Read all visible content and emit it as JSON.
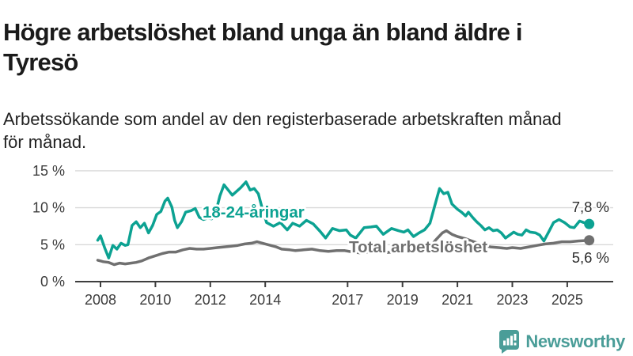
{
  "header": {
    "title": "Högre arbetslöshet bland unga än bland äldre i\nTyresö",
    "subtitle": "Arbetssökande som andel av den registerbaserade arbetskraften månad\nför månad."
  },
  "branding": {
    "logo_text": "Newsworthy",
    "logo_color": "#4a9d98",
    "logo_icon": "newsworthy-speech-bubble-barchart-icon"
  },
  "colors": {
    "young_series": "#0ca292",
    "total_series": "#707070",
    "axis_text": "#3c3c3c",
    "axis_line": "#3e3e3e",
    "gridline": "#d9d9d9",
    "annotation_text": "#2d2d2d",
    "title_text": "#1b1b1b"
  },
  "chart_data": {
    "type": "line",
    "title": "Högre arbetslöshet bland unga än bland äldre i Tyresö",
    "subtitle": "Arbetssökande som andel av den registerbaserade arbetskraften månad för månad.",
    "unit": "%",
    "grid": "horizontal",
    "legend": "inline-labels",
    "xlim": [
      2007.8,
      2026.3
    ],
    "ylim": [
      0,
      15.5
    ],
    "x_axis": {
      "ticks": [
        2008,
        2010,
        2012,
        2014,
        2017,
        2019,
        2021,
        2023,
        2025
      ],
      "tick_labels": [
        "2008",
        "2010",
        "2012",
        "2014",
        "2017",
        "2019",
        "2021",
        "2023",
        "2025"
      ]
    },
    "y_axis": {
      "ticks": [
        0,
        5,
        10,
        15
      ],
      "tick_labels": [
        "0 %",
        "5 %",
        "10 %",
        "15 %"
      ]
    },
    "series": [
      {
        "name": "18-24-åringar",
        "color": "#0ca292",
        "end_label": "7,8 %",
        "end_value": 7.8,
        "points": [
          [
            2007.9,
            5.6
          ],
          [
            2008.0,
            6.2
          ],
          [
            2008.15,
            4.6
          ],
          [
            2008.3,
            3.2
          ],
          [
            2008.45,
            4.9
          ],
          [
            2008.6,
            4.4
          ],
          [
            2008.75,
            5.2
          ],
          [
            2008.9,
            4.9
          ],
          [
            2009.0,
            5.0
          ],
          [
            2009.15,
            7.6
          ],
          [
            2009.3,
            8.1
          ],
          [
            2009.45,
            7.3
          ],
          [
            2009.6,
            7.9
          ],
          [
            2009.75,
            6.6
          ],
          [
            2009.9,
            7.6
          ],
          [
            2010.05,
            9.1
          ],
          [
            2010.2,
            9.5
          ],
          [
            2010.35,
            10.9
          ],
          [
            2010.45,
            11.3
          ],
          [
            2010.6,
            10.1
          ],
          [
            2010.7,
            8.3
          ],
          [
            2010.8,
            7.3
          ],
          [
            2010.95,
            8.1
          ],
          [
            2011.1,
            9.4
          ],
          [
            2011.3,
            9.6
          ],
          [
            2011.45,
            9.9
          ],
          [
            2011.6,
            8.7
          ],
          [
            2011.75,
            8.4
          ],
          [
            2011.9,
            8.6
          ],
          [
            2012.05,
            8.5
          ],
          [
            2012.2,
            9.4
          ],
          [
            2012.35,
            11.6
          ],
          [
            2012.5,
            13.1
          ],
          [
            2012.65,
            12.4
          ],
          [
            2012.8,
            11.7
          ],
          [
            2012.95,
            12.2
          ],
          [
            2013.1,
            12.7
          ],
          [
            2013.3,
            13.5
          ],
          [
            2013.45,
            12.4
          ],
          [
            2013.6,
            12.6
          ],
          [
            2013.75,
            11.9
          ],
          [
            2013.9,
            9.8
          ],
          [
            2014.05,
            8.0
          ],
          [
            2014.3,
            7.5
          ],
          [
            2014.55,
            8.0
          ],
          [
            2014.8,
            7.0
          ],
          [
            2015.0,
            7.9
          ],
          [
            2015.25,
            7.5
          ],
          [
            2015.5,
            8.3
          ],
          [
            2015.75,
            7.8
          ],
          [
            2016.0,
            6.8
          ],
          [
            2016.2,
            5.9
          ],
          [
            2016.45,
            7.2
          ],
          [
            2016.7,
            6.9
          ],
          [
            2016.95,
            7.0
          ],
          [
            2017.1,
            6.3
          ],
          [
            2017.3,
            5.9
          ],
          [
            2017.6,
            7.3
          ],
          [
            2017.85,
            7.4
          ],
          [
            2018.05,
            7.5
          ],
          [
            2018.3,
            6.4
          ],
          [
            2018.6,
            7.2
          ],
          [
            2018.85,
            6.9
          ],
          [
            2019.05,
            6.7
          ],
          [
            2019.2,
            7.0
          ],
          [
            2019.4,
            6.1
          ],
          [
            2019.6,
            6.6
          ],
          [
            2019.8,
            7.0
          ],
          [
            2020.0,
            7.9
          ],
          [
            2020.2,
            10.6
          ],
          [
            2020.35,
            12.6
          ],
          [
            2020.5,
            11.9
          ],
          [
            2020.65,
            12.1
          ],
          [
            2020.8,
            10.5
          ],
          [
            2021.0,
            9.8
          ],
          [
            2021.15,
            9.4
          ],
          [
            2021.3,
            8.9
          ],
          [
            2021.4,
            9.4
          ],
          [
            2021.55,
            8.7
          ],
          [
            2021.7,
            8.1
          ],
          [
            2021.85,
            7.6
          ],
          [
            2022.0,
            7.0
          ],
          [
            2022.15,
            7.3
          ],
          [
            2022.3,
            6.9
          ],
          [
            2022.45,
            7.0
          ],
          [
            2022.6,
            6.6
          ],
          [
            2022.75,
            5.9
          ],
          [
            2022.9,
            6.3
          ],
          [
            2023.05,
            6.7
          ],
          [
            2023.2,
            6.4
          ],
          [
            2023.35,
            6.3
          ],
          [
            2023.5,
            7.0
          ],
          [
            2023.65,
            6.7
          ],
          [
            2023.85,
            6.6
          ],
          [
            2024.0,
            6.3
          ],
          [
            2024.15,
            5.5
          ],
          [
            2024.35,
            6.9
          ],
          [
            2024.5,
            8.0
          ],
          [
            2024.7,
            8.4
          ],
          [
            2024.9,
            8.0
          ],
          [
            2025.1,
            7.4
          ],
          [
            2025.25,
            7.3
          ],
          [
            2025.45,
            8.2
          ],
          [
            2025.6,
            8.0
          ],
          [
            2025.8,
            7.8
          ]
        ]
      },
      {
        "name": "Total arbetslöshet",
        "color": "#707070",
        "end_label": "5,6 %",
        "end_value": 5.6,
        "points": [
          [
            2007.9,
            2.9
          ],
          [
            2008.1,
            2.7
          ],
          [
            2008.3,
            2.6
          ],
          [
            2008.5,
            2.3
          ],
          [
            2008.7,
            2.5
          ],
          [
            2008.9,
            2.4
          ],
          [
            2009.1,
            2.5
          ],
          [
            2009.3,
            2.6
          ],
          [
            2009.5,
            2.8
          ],
          [
            2009.75,
            3.2
          ],
          [
            2010.0,
            3.5
          ],
          [
            2010.25,
            3.8
          ],
          [
            2010.5,
            4.0
          ],
          [
            2010.75,
            4.0
          ],
          [
            2011.0,
            4.3
          ],
          [
            2011.25,
            4.5
          ],
          [
            2011.5,
            4.4
          ],
          [
            2011.75,
            4.4
          ],
          [
            2012.0,
            4.5
          ],
          [
            2012.25,
            4.6
          ],
          [
            2012.5,
            4.7
          ],
          [
            2012.75,
            4.8
          ],
          [
            2013.0,
            4.9
          ],
          [
            2013.25,
            5.1
          ],
          [
            2013.5,
            5.2
          ],
          [
            2013.7,
            5.4
          ],
          [
            2013.9,
            5.2
          ],
          [
            2014.1,
            5.0
          ],
          [
            2014.4,
            4.7
          ],
          [
            2014.6,
            4.4
          ],
          [
            2014.9,
            4.3
          ],
          [
            2015.1,
            4.2
          ],
          [
            2015.4,
            4.3
          ],
          [
            2015.7,
            4.4
          ],
          [
            2016.0,
            4.2
          ],
          [
            2016.3,
            4.1
          ],
          [
            2016.6,
            4.2
          ],
          [
            2016.9,
            4.2
          ],
          [
            2017.2,
            4.0
          ],
          [
            2017.45,
            3.9
          ],
          [
            2017.7,
            4.0
          ],
          [
            2018.0,
            4.1
          ],
          [
            2018.3,
            3.9
          ],
          [
            2018.6,
            4.0
          ],
          [
            2018.9,
            4.0
          ],
          [
            2019.2,
            4.1
          ],
          [
            2019.5,
            4.2
          ],
          [
            2019.8,
            4.4
          ],
          [
            2020.0,
            4.6
          ],
          [
            2020.2,
            5.6
          ],
          [
            2020.45,
            6.6
          ],
          [
            2020.6,
            6.9
          ],
          [
            2020.8,
            6.4
          ],
          [
            2021.0,
            6.1
          ],
          [
            2021.3,
            5.8
          ],
          [
            2021.6,
            5.4
          ],
          [
            2021.9,
            5.0
          ],
          [
            2022.2,
            4.7
          ],
          [
            2022.5,
            4.6
          ],
          [
            2022.8,
            4.5
          ],
          [
            2023.0,
            4.6
          ],
          [
            2023.3,
            4.5
          ],
          [
            2023.6,
            4.7
          ],
          [
            2023.9,
            4.9
          ],
          [
            2024.2,
            5.1
          ],
          [
            2024.5,
            5.2
          ],
          [
            2024.8,
            5.4
          ],
          [
            2025.1,
            5.4
          ],
          [
            2025.4,
            5.5
          ],
          [
            2025.8,
            5.6
          ]
        ]
      }
    ]
  }
}
